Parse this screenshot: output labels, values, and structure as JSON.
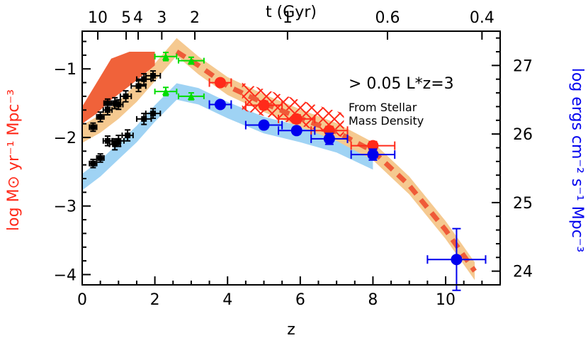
{
  "chart_data": {
    "type": "scatter",
    "xlabel": "z",
    "ylabel_left": "log M⊙ yr⁻¹ Mpc⁻³",
    "ylabel_right": "log ergs cm⁻² s⁻¹ Mpc⁻³",
    "top_axis_label": "t (Gyr)",
    "xlim": [
      0,
      11.5
    ],
    "ylim_left": [
      -4.15,
      -0.45
    ],
    "ylim_right": [
      23.8,
      27.5
    ],
    "x_ticks": [
      "0",
      "2",
      "4",
      "6",
      "8",
      "10"
    ],
    "x_tick_values": [
      0,
      2,
      4,
      6,
      8,
      10
    ],
    "y_left_ticks": [
      "−1",
      "−2",
      "−3",
      "−4"
    ],
    "y_left_tick_values": [
      -1,
      -2,
      -3,
      -4
    ],
    "y_right_ticks": [
      "27",
      "26",
      "25",
      "24"
    ],
    "y_right_tick_values": [
      27,
      26,
      25,
      24
    ],
    "top_ticks": [
      {
        "label": "10",
        "z": 0.43
      },
      {
        "label": "5",
        "z": 1.21
      },
      {
        "label": "4",
        "z": 1.54
      },
      {
        "label": "3",
        "z": 2.19
      },
      {
        "label": "2",
        "z": 3.1
      },
      {
        "label": "1",
        "z": 5.65
      },
      {
        "label": "0.6",
        "z": 8.4
      },
      {
        "label": "0.4",
        "z": 11.0
      }
    ],
    "annotation_main": "> 0.05 L*z=3",
    "annotation_sub_1": "From Stellar",
    "annotation_sub_2": "Mass Density",
    "colors": {
      "red": "#ff2a1a",
      "red_band": "#f0623a",
      "orange_band": "#f5c990",
      "dashed": "#ef5a38",
      "blue": "#0000ee",
      "blue_band": "#9fd3f4",
      "green": "#00dd00",
      "black": "#000000",
      "ylabel_left_color": "#ff2a1a",
      "ylabel_right_color": "#0000ee"
    },
    "bands": {
      "red_upper": [
        [
          0,
          -1.55
        ],
        [
          0.4,
          -1.2
        ],
        [
          0.8,
          -0.85
        ],
        [
          1.3,
          -0.75
        ],
        [
          2.0,
          -0.75
        ]
      ],
      "red_lower": [
        [
          0,
          -1.8
        ],
        [
          0.4,
          -1.65
        ],
        [
          0.8,
          -1.45
        ],
        [
          1.3,
          -1.25
        ],
        [
          2.0,
          -0.95
        ]
      ],
      "orange_center": [
        [
          0,
          -1.95
        ],
        [
          0.5,
          -1.8
        ],
        [
          1.0,
          -1.6
        ],
        [
          1.5,
          -1.35
        ],
        [
          2.0,
          -1.05
        ],
        [
          2.6,
          -0.68
        ],
        [
          3.2,
          -0.95
        ],
        [
          4.0,
          -1.25
        ],
        [
          5.0,
          -1.5
        ],
        [
          6.0,
          -1.72
        ],
        [
          7.0,
          -1.92
        ],
        [
          8.0,
          -2.2
        ],
        [
          9.0,
          -2.7
        ],
        [
          10.0,
          -3.35
        ],
        [
          10.8,
          -3.95
        ]
      ],
      "orange_halfwidth": 0.13,
      "blue_center": [
        [
          0,
          -2.65
        ],
        [
          0.5,
          -2.45
        ],
        [
          1.0,
          -2.2
        ],
        [
          1.5,
          -1.95
        ],
        [
          2.0,
          -1.65
        ],
        [
          2.6,
          -1.33
        ],
        [
          3.2,
          -1.4
        ],
        [
          4.0,
          -1.6
        ],
        [
          5.0,
          -1.82
        ],
        [
          6.0,
          -1.95
        ],
        [
          7.0,
          -2.1
        ],
        [
          8.0,
          -2.35
        ]
      ],
      "blue_halfwidth": 0.12
    },
    "dashed_line": [
      [
        2.6,
        -0.75
      ],
      [
        3.2,
        -0.95
      ],
      [
        4.0,
        -1.25
      ],
      [
        5.0,
        -1.5
      ],
      [
        6.0,
        -1.72
      ],
      [
        7.0,
        -1.92
      ],
      [
        8.0,
        -2.2
      ],
      [
        9.0,
        -2.7
      ],
      [
        10.0,
        -3.35
      ],
      [
        10.8,
        -3.95
      ]
    ],
    "hatch_region": [
      [
        4.4,
        -1.2
      ],
      [
        7.2,
        -1.65
      ],
      [
        7.2,
        -2.0
      ],
      [
        4.4,
        -1.6
      ]
    ],
    "series": [
      {
        "name": "",
        "color": "red",
        "marker": "circle",
        "size": 8,
        "points": [
          {
            "x": 3.8,
            "y": -1.2,
            "xerr": 0.3,
            "yerr": 0.04
          },
          {
            "x": 5.0,
            "y": -1.53,
            "xerr": 0.5,
            "yerr": 0.06
          },
          {
            "x": 5.9,
            "y": -1.73,
            "xerr": 0.5,
            "yerr": 0.06
          },
          {
            "x": 6.8,
            "y": -1.9,
            "xerr": 0.5,
            "yerr": 0.06
          },
          {
            "x": 8.0,
            "y": -2.12,
            "xerr": 0.6,
            "yerr": 0.06
          }
        ]
      },
      {
        "name": "",
        "color": "blue",
        "marker": "circle",
        "size": 8,
        "points": [
          {
            "x": 3.8,
            "y": -1.52,
            "xerr": 0.3,
            "yerr": 0.04
          },
          {
            "x": 5.0,
            "y": -1.82,
            "xerr": 0.5,
            "yerr": 0.05
          },
          {
            "x": 5.9,
            "y": -1.9,
            "xerr": 0.5,
            "yerr": 0.05
          },
          {
            "x": 6.8,
            "y": -2.02,
            "xerr": 0.5,
            "yerr": 0.08
          },
          {
            "x": 8.0,
            "y": -2.25,
            "xerr": 0.6,
            "yerr": 0.08
          },
          {
            "x": 10.3,
            "y": -3.78,
            "xerr": 0.8,
            "yerr": 0.45
          }
        ]
      },
      {
        "name": "",
        "color": "green",
        "marker": "triangle",
        "size": 5,
        "points": [
          {
            "x": 2.3,
            "y": -0.82,
            "xerr": 0.3,
            "yerr": 0.06
          },
          {
            "x": 3.0,
            "y": -0.88,
            "xerr": 0.35,
            "yerr": 0.05
          },
          {
            "x": 2.3,
            "y": -1.33,
            "xerr": 0.3,
            "yerr": 0.06
          },
          {
            "x": 3.0,
            "y": -1.4,
            "xerr": 0.35,
            "yerr": 0.05
          }
        ]
      },
      {
        "name": "",
        "color": "black",
        "marker": "square",
        "size": 4,
        "points": [
          {
            "x": 0.3,
            "y": -1.85,
            "xerr": 0.1,
            "yerr": 0.06
          },
          {
            "x": 0.5,
            "y": -1.7,
            "xerr": 0.1,
            "yerr": 0.07
          },
          {
            "x": 0.7,
            "y": -1.6,
            "xerr": 0.12,
            "yerr": 0.07
          },
          {
            "x": 0.9,
            "y": -1.5,
            "xerr": 0.15,
            "yerr": 0.08
          },
          {
            "x": 1.2,
            "y": -1.4,
            "xerr": 0.15,
            "yerr": 0.08
          },
          {
            "x": 1.55,
            "y": -1.25,
            "xerr": 0.2,
            "yerr": 0.08
          },
          {
            "x": 1.7,
            "y": -1.15,
            "xerr": 0.2,
            "yerr": 0.08
          },
          {
            "x": 1.95,
            "y": -1.1,
            "xerr": 0.2,
            "yerr": 0.07
          },
          {
            "x": 0.7,
            "y": -1.5,
            "xerr": 0.1,
            "yerr": 0.06
          },
          {
            "x": 1.0,
            "y": -1.52,
            "xerr": 0.12,
            "yerr": 0.07
          },
          {
            "x": 0.3,
            "y": -2.38,
            "xerr": 0.1,
            "yerr": 0.06
          },
          {
            "x": 0.5,
            "y": -2.3,
            "xerr": 0.1,
            "yerr": 0.06
          },
          {
            "x": 0.7,
            "y": -2.05,
            "xerr": 0.12,
            "yerr": 0.07
          },
          {
            "x": 0.9,
            "y": -2.1,
            "xerr": 0.15,
            "yerr": 0.08
          },
          {
            "x": 1.0,
            "y": -2.05,
            "xerr": 0.15,
            "yerr": 0.08
          },
          {
            "x": 1.25,
            "y": -1.97,
            "xerr": 0.15,
            "yerr": 0.08
          },
          {
            "x": 1.7,
            "y": -1.73,
            "xerr": 0.2,
            "yerr": 0.08
          },
          {
            "x": 1.95,
            "y": -1.65,
            "xerr": 0.2,
            "yerr": 0.07
          }
        ]
      }
    ]
  }
}
